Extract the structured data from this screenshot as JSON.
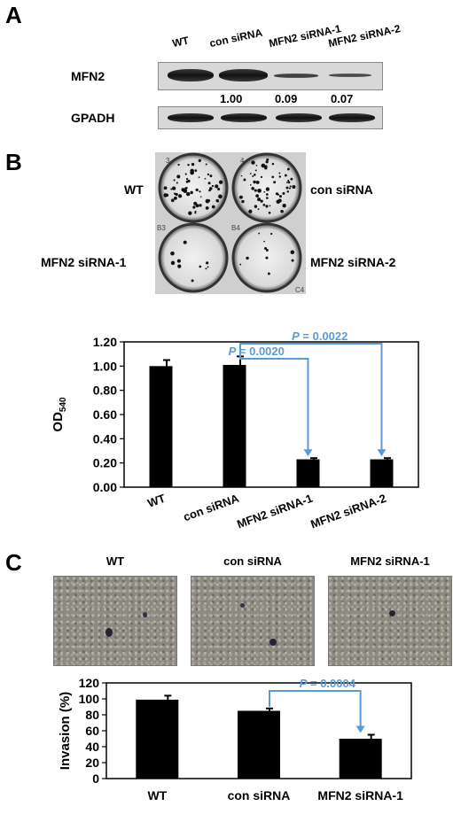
{
  "panel_a": {
    "letter": "A",
    "lanes": [
      "WT",
      "con siRNA",
      "MFN2 siRNA-1",
      "MFN2 siRNA-2"
    ],
    "row1_label": "MFN2",
    "ratios": [
      "1.00",
      "0.09",
      "0.07"
    ],
    "row2_label": "GPADH"
  },
  "panel_b": {
    "letter": "B",
    "well_labels": {
      "top_left": "WT",
      "top_right": "con siRNA",
      "bottom_left": "MFN2 siRNA-1",
      "bottom_right": "MFN2 siRNA-2"
    },
    "plate_marks": [
      "3",
      "4",
      "B3",
      "B4",
      "C4"
    ]
  },
  "panel_c": {
    "letter": "C",
    "image_labels": [
      "WT",
      "con siRNA",
      "MFN2 siRNA-1"
    ]
  },
  "chart_data": [
    {
      "type": "bar",
      "categories": [
        "WT",
        "con siRNA",
        "MFN2 siRNA-1",
        "MFN2 siRNA-2"
      ],
      "values": [
        1.0,
        1.01,
        0.23,
        0.23
      ],
      "errors": [
        0.05,
        0.07,
        0.01,
        0.01
      ],
      "ylabel": "OD",
      "ylabel_subscript": "540",
      "ylim": [
        0,
        1.2
      ],
      "yticks": [
        "0.00",
        "0.20",
        "0.40",
        "0.60",
        "0.80",
        "1.00",
        "1.20"
      ],
      "bar_color": "#000000",
      "annotation_color": "#5b9bd5",
      "annotations": [
        {
          "p_label": "P",
          "p_text": " = 0.0022",
          "from": 1,
          "to": 3
        },
        {
          "p_label": "P",
          "p_text": " = 0.0020",
          "from": 1,
          "to": 2
        }
      ]
    },
    {
      "type": "bar",
      "categories": [
        "WT",
        "con siRNA",
        "MFN2 siRNA-1"
      ],
      "values": [
        99,
        85,
        50
      ],
      "errors": [
        5,
        3,
        5
      ],
      "ylabel": "Invasion (%)",
      "ylim": [
        0,
        120
      ],
      "yticks": [
        "0",
        "20",
        "40",
        "60",
        "80",
        "100",
        "120"
      ],
      "bar_color": "#000000",
      "annotation_color": "#5b9bd5",
      "annotations": [
        {
          "p_label": "P",
          "p_text": " = 0.0004",
          "from": 1,
          "to": 2
        }
      ]
    }
  ]
}
